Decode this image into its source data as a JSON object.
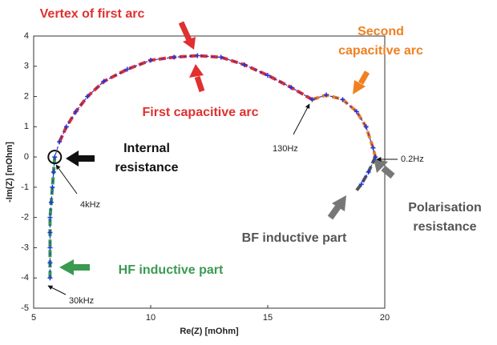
{
  "chart_data": {
    "type": "line",
    "xlabel": "Re(Z) [mOhm]",
    "ylabel": "-Im(Z) [mOhm]",
    "xlim": [
      5,
      20
    ],
    "xticks": [
      5,
      10,
      15,
      20
    ],
    "ylim": [
      -5,
      4
    ],
    "yticks": [
      -5,
      -4,
      -3,
      -2,
      -1,
      0,
      1,
      2,
      3,
      4
    ],
    "grid": false,
    "series": [
      {
        "color": "#2233dd",
        "x": [
          5.7,
          5.7,
          5.7,
          5.7,
          5.7,
          5.75,
          5.8,
          5.85,
          5.9,
          6.1,
          6.4,
          6.8,
          7.3,
          8,
          9,
          10,
          11,
          12,
          13,
          14,
          15,
          16,
          16.9,
          17.5,
          18.2,
          18.8,
          19.2,
          19.5,
          19.6,
          19.3,
          19
        ],
        "values": [
          -4,
          -3.5,
          -3,
          -2.5,
          -2,
          -1.5,
          -1,
          -0.5,
          0,
          0.5,
          1,
          1.5,
          2,
          2.5,
          2.9,
          3.2,
          3.3,
          3.35,
          3.3,
          3.05,
          2.7,
          2.3,
          1.9,
          2.05,
          1.9,
          1.5,
          1,
          0.3,
          0,
          -0.5,
          -0.9
        ]
      },
      {
        "color": "#e03030",
        "x": [
          6.1,
          6.4,
          6.8,
          7.3,
          8,
          9,
          10,
          11,
          12,
          13,
          14,
          15,
          16,
          16.9
        ],
        "values": [
          0.5,
          1,
          1.5,
          2,
          2.5,
          2.9,
          3.2,
          3.3,
          3.35,
          3.3,
          3.05,
          2.7,
          2.3,
          1.9
        ]
      },
      {
        "color": "#f08020",
        "x": [
          16.9,
          17.5,
          18.2,
          18.8,
          19.2,
          19.5,
          19.6
        ],
        "values": [
          1.9,
          2.05,
          1.9,
          1.5,
          1,
          0.3,
          0
        ]
      },
      {
        "color": "#3a9a50",
        "x": [
          5.7,
          5.7,
          5.7,
          5.7,
          5.7,
          5.75,
          5.8,
          5.85,
          5.9
        ],
        "values": [
          -4,
          -3.5,
          -3,
          -2.5,
          -2,
          -1.5,
          -1,
          -0.5,
          0
        ]
      },
      {
        "color": "#555555",
        "x": [
          19.6,
          19.3,
          19,
          18.8
        ],
        "values": [
          0,
          -0.5,
          -0.9,
          -1.1
        ]
      }
    ],
    "annotations": [
      {
        "lines": [
          "Vertex of first arc"
        ],
        "color": "#e03030"
      },
      {
        "lines": [
          "Second",
          "capacitive arc"
        ],
        "color": "#f08020"
      },
      {
        "lines": [
          "First capacitive arc"
        ],
        "color": "#e03030"
      },
      {
        "lines": [
          "Internal",
          "resistance"
        ],
        "color": "#111111"
      },
      {
        "lines": [
          "Polarisation",
          "resistance"
        ],
        "color": "#555555"
      },
      {
        "lines": [
          "BF inductive part"
        ],
        "color": "#555555"
      },
      {
        "lines": [
          "HF inductive part"
        ],
        "color": "#3a9a50"
      }
    ],
    "frequency_labels": [
      "4kHz",
      "130Hz",
      "0.2Hz",
      "30kHz"
    ]
  }
}
